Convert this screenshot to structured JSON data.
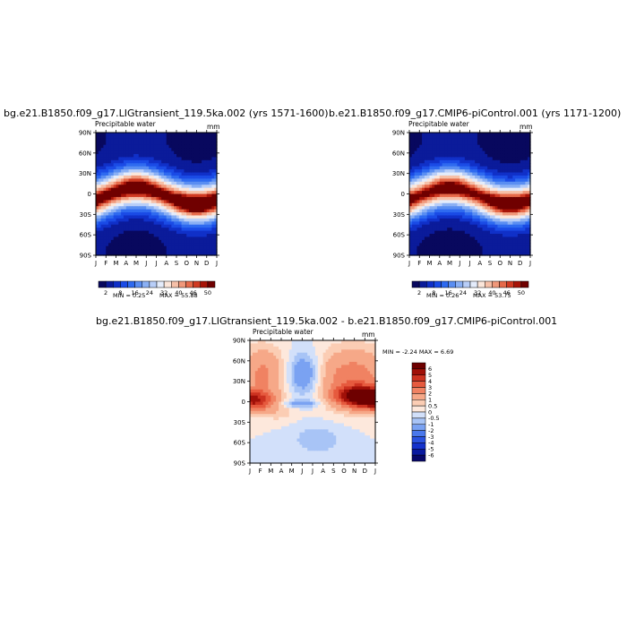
{
  "chart_data": [
    {
      "type": "heatmap",
      "title": "bg.e21.B1850.f09_g17.LIGtransient_119.5ka.002 (yrs 1571-1600)",
      "subtitle": "Precipitable water",
      "units": "mm",
      "x_ticks": [
        "J",
        "F",
        "M",
        "A",
        "M",
        "J",
        "J",
        "A",
        "S",
        "O",
        "N",
        "D",
        "J"
      ],
      "y_ticks": [
        "90N",
        "60N",
        "30N",
        "0",
        "30S",
        "60S",
        "90S"
      ],
      "min_label": "MIN =   0.25",
      "max_label": "MAX =   55.88",
      "min": 0.25,
      "max": 55.88,
      "colorbar": {
        "levels": [
          2,
          5,
          8,
          12,
          16,
          20,
          24,
          28,
          32,
          36,
          40,
          43,
          46,
          48,
          50
        ],
        "tick_labels": [
          "2",
          "8",
          "16",
          "24",
          "32",
          "40",
          "46",
          "50"
        ],
        "colors": [
          "#08085e",
          "#0b1b9a",
          "#1030c8",
          "#1a4be6",
          "#2e6af0",
          "#5a8ef2",
          "#8ab0f4",
          "#b8cef8",
          "#e4ecfb",
          "#fbe6da",
          "#f6c0a8",
          "#f0987a",
          "#e66a4a",
          "#d03a22",
          "#a81408",
          "#700000"
        ]
      }
    },
    {
      "type": "heatmap",
      "title": "b.e21.B1850.f09_g17.CMIP6-piControl.001 (yrs 1171-1200)",
      "subtitle": "Precipitable water",
      "units": "mm",
      "x_ticks": [
        "J",
        "F",
        "M",
        "A",
        "M",
        "J",
        "J",
        "A",
        "S",
        "O",
        "N",
        "D",
        "J"
      ],
      "y_ticks": [
        "90N",
        "60N",
        "30N",
        "0",
        "30S",
        "60S",
        "90S"
      ],
      "min_label": "MIN =   0.26",
      "max_label": "MAX =   53.75",
      "min": 0.26,
      "max": 53.75,
      "colorbar": {
        "levels": [
          2,
          5,
          8,
          12,
          16,
          20,
          24,
          28,
          32,
          36,
          40,
          43,
          46,
          48,
          50
        ],
        "tick_labels": [
          "2",
          "8",
          "16",
          "24",
          "32",
          "40",
          "46",
          "50"
        ],
        "colors": [
          "#08085e",
          "#0b1b9a",
          "#1030c8",
          "#1a4be6",
          "#2e6af0",
          "#5a8ef2",
          "#8ab0f4",
          "#b8cef8",
          "#e4ecfb",
          "#fbe6da",
          "#f6c0a8",
          "#f0987a",
          "#e66a4a",
          "#d03a22",
          "#a81408",
          "#700000"
        ]
      }
    },
    {
      "type": "heatmap",
      "title": "bg.e21.B1850.f09_g17.LIGtransient_119.5ka.002 - b.e21.B1850.f09_g17.CMIP6-piControl.001",
      "subtitle": "Precipitable water",
      "units": "mm",
      "x_ticks": [
        "J",
        "F",
        "M",
        "A",
        "M",
        "J",
        "J",
        "A",
        "S",
        "O",
        "N",
        "D",
        "J"
      ],
      "y_ticks": [
        "90N",
        "60N",
        "30N",
        "0",
        "30S",
        "60S",
        "90S"
      ],
      "minmax_label": "MIN =  -2.24 MAX =    6.69",
      "min": -2.24,
      "max": 6.69,
      "colorbar": {
        "levels": [
          -6,
          -5,
          -4,
          -3,
          -2,
          -1,
          -0.5,
          0,
          0.5,
          1,
          2,
          3,
          4,
          5,
          6
        ],
        "tick_labels": [
          "6",
          "5",
          "4",
          "3",
          "2",
          "1",
          "0.5",
          "0",
          "-0.5",
          "-1",
          "-2",
          "-3",
          "-4",
          "-5",
          "-6"
        ],
        "colors": [
          "#08086a",
          "#0a1aa0",
          "#1432cc",
          "#2a52e0",
          "#4a78ec",
          "#7aa2f2",
          "#a8c4f6",
          "#d2e0fa",
          "#fde8dc",
          "#fbcdb4",
          "#f6a888",
          "#f08262",
          "#e65a3e",
          "#cc3220",
          "#a01008",
          "#6e0000"
        ]
      }
    }
  ]
}
